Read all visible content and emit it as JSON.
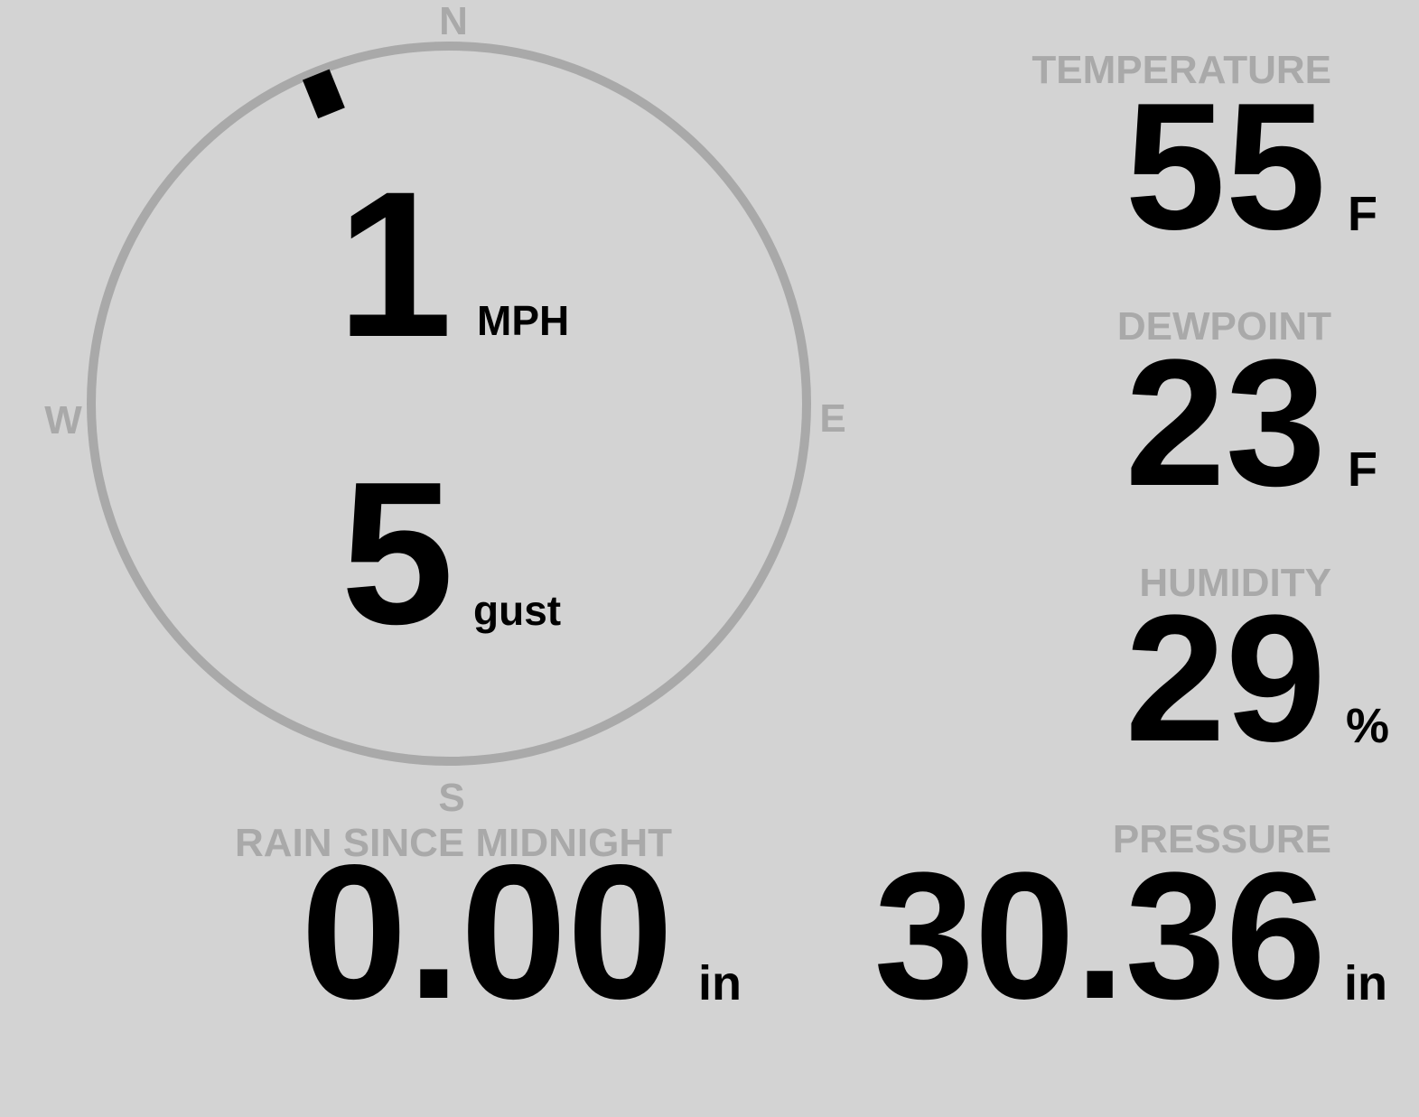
{
  "compass": {
    "north": "N",
    "east": "E",
    "south": "S",
    "west": "W",
    "direction_deg": 338
  },
  "wind": {
    "speed": "1",
    "speed_unit": "MPH",
    "gust": "5",
    "gust_unit": "gust"
  },
  "temperature": {
    "label": "TEMPERATURE",
    "value": "55",
    "unit": "F"
  },
  "dewpoint": {
    "label": "DEWPOINT",
    "value": "23",
    "unit": "F"
  },
  "humidity": {
    "label": "HUMIDITY",
    "value": "29",
    "unit": "%"
  },
  "rain": {
    "label": "RAIN SINCE MIDNIGHT",
    "value": "0.00",
    "unit": "in"
  },
  "pressure": {
    "label": "PRESSURE",
    "value": "30.36",
    "unit": "in"
  }
}
